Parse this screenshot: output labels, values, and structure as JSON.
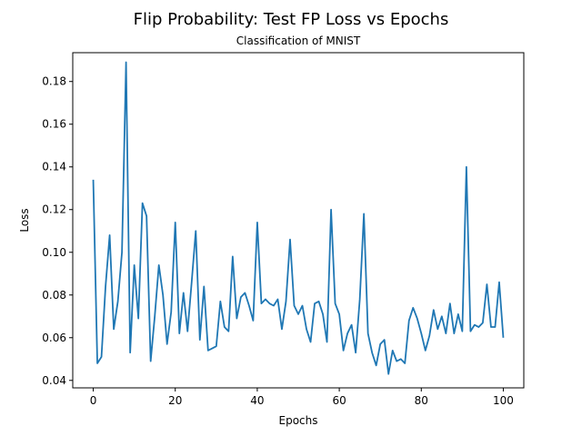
{
  "chart_data": {
    "type": "line",
    "title": "Flip Probability: Test FP Loss vs Epochs",
    "subtitle": "Classification of MNIST",
    "xlabel": "Epochs",
    "ylabel": "Loss",
    "xlim": [
      -5,
      105
    ],
    "ylim": [
      0.0365,
      0.1935
    ],
    "xticks": [
      0,
      20,
      40,
      60,
      80,
      100
    ],
    "yticks": [
      0.04,
      0.06,
      0.08,
      0.1,
      0.12,
      0.14,
      0.16,
      0.18
    ],
    "ytick_labels": [
      "0.04",
      "0.06",
      "0.08",
      "0.10",
      "0.12",
      "0.14",
      "0.16",
      "0.18"
    ],
    "grid": false,
    "series": [
      {
        "color": "#1f77b4",
        "x": [
          0,
          1,
          2,
          3,
          4,
          5,
          6,
          7,
          8,
          9,
          10,
          11,
          12,
          13,
          14,
          15,
          16,
          17,
          18,
          19,
          20,
          21,
          22,
          23,
          24,
          25,
          26,
          27,
          28,
          29,
          30,
          31,
          32,
          33,
          34,
          35,
          36,
          37,
          38,
          39,
          40,
          41,
          42,
          43,
          44,
          45,
          46,
          47,
          48,
          49,
          50,
          51,
          52,
          53,
          54,
          55,
          56,
          57,
          58,
          59,
          60,
          61,
          62,
          63,
          64,
          65,
          66,
          67,
          68,
          69,
          70,
          71,
          72,
          73,
          74,
          75,
          76,
          77,
          78,
          79,
          80,
          81,
          82,
          83,
          84,
          85,
          86,
          87,
          88,
          89,
          90,
          91,
          92,
          93,
          94,
          95,
          96,
          97,
          98,
          99,
          100
        ],
        "y": [
          0.134,
          0.048,
          0.051,
          0.084,
          0.108,
          0.064,
          0.077,
          0.1,
          0.189,
          0.053,
          0.094,
          0.069,
          0.123,
          0.117,
          0.049,
          0.07,
          0.094,
          0.08,
          0.057,
          0.072,
          0.114,
          0.062,
          0.081,
          0.063,
          0.086,
          0.11,
          0.059,
          0.084,
          0.054,
          0.055,
          0.056,
          0.077,
          0.065,
          0.063,
          0.098,
          0.069,
          0.079,
          0.081,
          0.075,
          0.068,
          0.114,
          0.076,
          0.078,
          0.076,
          0.075,
          0.078,
          0.064,
          0.077,
          0.106,
          0.075,
          0.071,
          0.075,
          0.064,
          0.058,
          0.076,
          0.077,
          0.071,
          0.058,
          0.12,
          0.076,
          0.071,
          0.054,
          0.062,
          0.066,
          0.053,
          0.078,
          0.118,
          0.062,
          0.053,
          0.047,
          0.057,
          0.059,
          0.043,
          0.054,
          0.049,
          0.05,
          0.048,
          0.068,
          0.074,
          0.069,
          0.062,
          0.054,
          0.061,
          0.073,
          0.064,
          0.07,
          0.062,
          0.076,
          0.062,
          0.071,
          0.063,
          0.14,
          0.063,
          0.066,
          0.065,
          0.067,
          0.085,
          0.065,
          0.065,
          0.086,
          0.06
        ]
      }
    ]
  }
}
